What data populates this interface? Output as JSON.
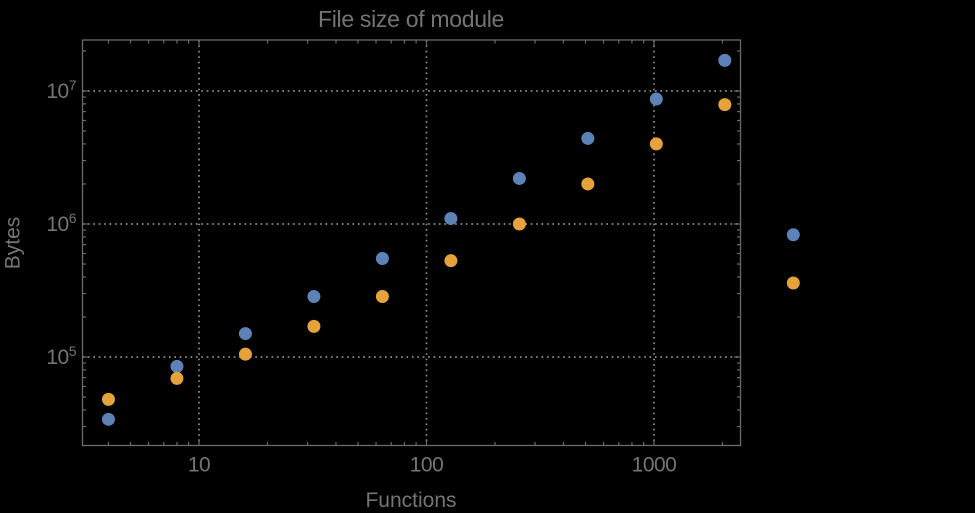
{
  "figure": {
    "background": "#000000",
    "text_color": "#747474",
    "frame_color": "#6A6A6A"
  },
  "chart_data": {
    "type": "scatter",
    "title": "File size of module",
    "xlabel": "Functions",
    "ylabel": "Bytes",
    "legend": "none",
    "grid": {
      "style": "dotted",
      "color": "#8A8A8A"
    },
    "x_axis": {
      "scale": "log",
      "range": [
        3.05,
        2390
      ],
      "ticks": [
        {
          "value": 10,
          "label": "10"
        },
        {
          "value": 100,
          "label": "100"
        },
        {
          "value": 1000,
          "label": "1000"
        }
      ]
    },
    "y_axis": {
      "scale": "log",
      "range": [
        21800,
        24200000
      ],
      "ticks": [
        {
          "value": 100000,
          "mantissa": "10",
          "exponent": "5"
        },
        {
          "value": 1000000,
          "mantissa": "10",
          "exponent": "6"
        },
        {
          "value": 10000000,
          "mantissa": "10",
          "exponent": "7"
        }
      ]
    },
    "x": [
      4,
      8,
      16,
      32,
      64,
      128,
      256,
      512,
      1024,
      2048,
      4096
    ],
    "series": [
      {
        "name": "series-blue",
        "color": "#5C82B8",
        "values": [
          34000,
          85000,
          150000,
          285000,
          550000,
          1100000,
          2200000,
          4400000,
          8700000,
          17000000,
          830000
        ]
      },
      {
        "name": "series-orange",
        "color": "#E6A33B",
        "values": [
          48000,
          69000,
          105000,
          170000,
          285000,
          530000,
          1000000,
          2000000,
          4000000,
          7900000,
          360000
        ]
      }
    ]
  }
}
